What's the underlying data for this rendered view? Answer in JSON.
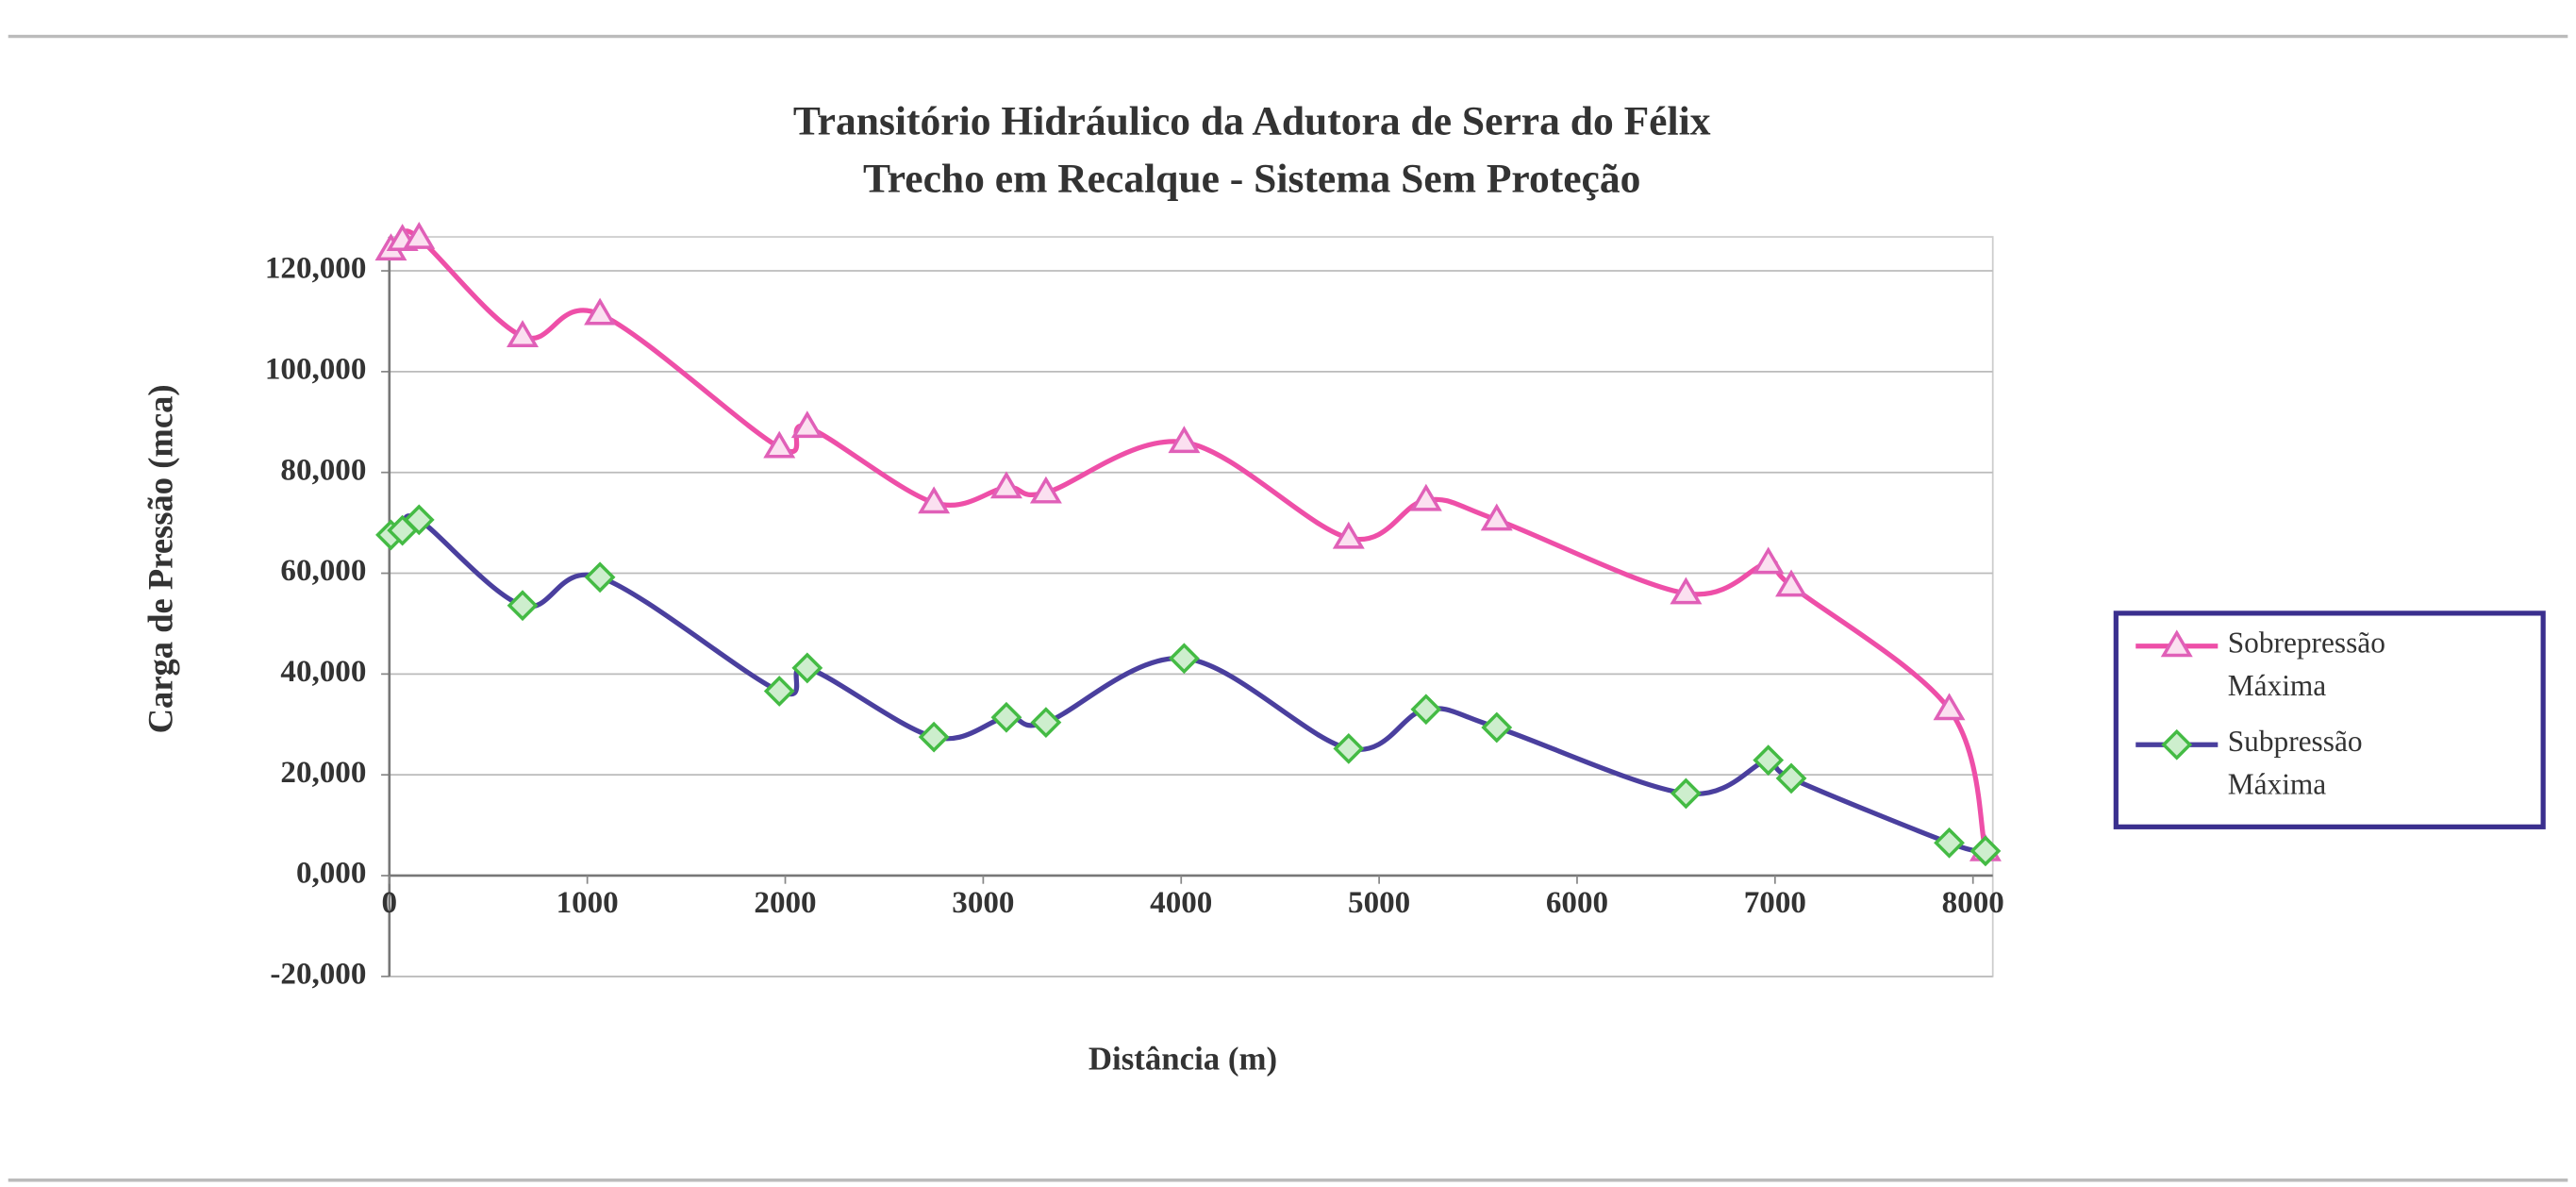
{
  "chart_data": {
    "type": "line",
    "title": "Transitório Hidráulico da Adutora de Serra do Félix",
    "subtitle": "Trecho em Recalque  - Sistema Sem Proteção",
    "x_label": "Distância (m)",
    "y_label": "Carga de Pressão (mca)",
    "x": [
      8,
      66,
      150,
      673,
      1064,
      1970,
      2111,
      2751,
      3117,
      3317,
      4015,
      4846,
      5237,
      5594,
      6550,
      6966,
      7082,
      7880,
      8063
    ],
    "series": [
      {
        "name": "Sobrepressão Máxima",
        "color": "#ee4fa8",
        "marker": "triangle",
        "marker_color": "#e060b8",
        "values": [
          124.2,
          126.1,
          126.5,
          107,
          111.4,
          85,
          89,
          74,
          77,
          76,
          86,
          67,
          74.5,
          70.6,
          56,
          62,
          57.5,
          33,
          5
        ]
      },
      {
        "name": "Subpressão Máxima",
        "color": "#4a3f9e",
        "marker": "diamond",
        "marker_color": "#44bb44",
        "values": [
          67.6,
          68.5,
          70.6,
          53.6,
          59.2,
          36.6,
          41.2,
          27.5,
          31.4,
          30.4,
          43.1,
          25.2,
          33,
          29.4,
          16.3,
          22.9,
          19.3,
          6.5,
          4.9
        ]
      }
    ],
    "xlim": [
      0,
      8100
    ],
    "xticks": [
      0,
      1000,
      2000,
      3000,
      4000,
      5000,
      6000,
      7000,
      8000
    ],
    "ylim": [
      -20,
      130
    ],
    "yticks": [
      {
        "value": -20,
        "label": "-20,000"
      },
      {
        "value": 0,
        "label": "0,000"
      },
      {
        "value": 20,
        "label": "20,000"
      },
      {
        "value": 40,
        "label": "40,000"
      },
      {
        "value": 60,
        "label": "60,000"
      },
      {
        "value": 80,
        "label": "80,000"
      },
      {
        "value": 100,
        "label": "100,000"
      },
      {
        "value": 120,
        "label": "120,000"
      }
    ],
    "grid": true,
    "legend": "right"
  }
}
